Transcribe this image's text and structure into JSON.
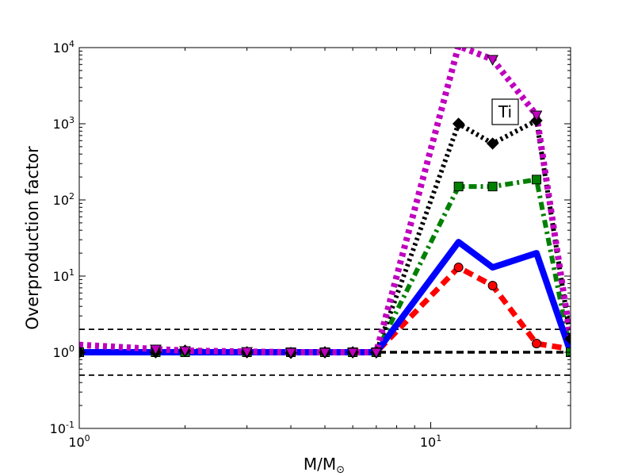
{
  "chart_data": {
    "type": "line",
    "xscale": "log",
    "yscale": "log",
    "xlim": [
      1,
      25
    ],
    "ylim": [
      0.1,
      10000
    ],
    "xlabel": "M/M",
    "xlabel_sub": "⊙",
    "ylabel": "Overproduction factor",
    "annotation": "Ti",
    "x_ticks": [
      {
        "value": 1,
        "base": "10",
        "exp": "0"
      },
      {
        "value": 10,
        "base": "10",
        "exp": "1"
      }
    ],
    "y_ticks": [
      {
        "value": 0.1,
        "base": "10",
        "exp": "-1"
      },
      {
        "value": 1,
        "base": "10",
        "exp": "0"
      },
      {
        "value": 10,
        "base": "10",
        "exp": "1"
      },
      {
        "value": 100,
        "base": "10",
        "exp": "2"
      },
      {
        "value": 1000,
        "base": "10",
        "exp": "3"
      },
      {
        "value": 10000,
        "base": "10",
        "exp": "4"
      }
    ],
    "reference_lines": [
      {
        "y": 2,
        "color": "#000000",
        "style": "dashed"
      },
      {
        "y": 1,
        "color": "#000000",
        "style": "dashed-bold"
      },
      {
        "y": 0.5,
        "color": "#000000",
        "style": "dashed"
      }
    ],
    "series": [
      {
        "color": "#008000",
        "style": "dashdot",
        "marker": "square",
        "x": [
          1,
          1.65,
          2,
          3,
          4,
          5,
          6,
          7,
          12,
          15,
          20,
          25
        ],
        "y": [
          1.0,
          1.0,
          1.0,
          1.0,
          1.0,
          1.0,
          1.0,
          1.0,
          150,
          150,
          185,
          1.0
        ],
        "markers_x": [
          1,
          1.65,
          2,
          3,
          4,
          5,
          6,
          7,
          12,
          15,
          20,
          25
        ],
        "markers_y": [
          1.0,
          1.0,
          1.0,
          1.0,
          1.0,
          1.0,
          1.0,
          1.0,
          150,
          150,
          185,
          1.0
        ]
      },
      {
        "color": "#000000",
        "style": "dotted",
        "marker": "diamond",
        "x": [
          1,
          1.65,
          2,
          3,
          4,
          5,
          6,
          7,
          12,
          15,
          20,
          25
        ],
        "y": [
          1.0,
          1.0,
          1.05,
          1.0,
          0.98,
          1.0,
          1.0,
          1.0,
          1000,
          550,
          1100,
          1.5
        ],
        "markers_x": [
          1,
          1.65,
          2,
          3,
          4,
          5,
          6,
          7,
          12,
          15,
          20,
          25
        ],
        "markers_y": [
          1.0,
          1.0,
          1.05,
          1.0,
          0.98,
          1.0,
          1.0,
          1.0,
          1000,
          550,
          1100,
          1.5
        ]
      },
      {
        "color": "#ff0000",
        "style": "dashed",
        "marker": "circle",
        "x": [
          1,
          1.65,
          2,
          3,
          4,
          5,
          6,
          7,
          12,
          15,
          20,
          25
        ],
        "y": [
          1.0,
          1.0,
          1.0,
          1.0,
          1.0,
          1.0,
          1.0,
          1.0,
          13,
          7.5,
          1.3,
          1.1
        ],
        "markers_x": [
          12,
          15,
          20
        ],
        "markers_y": [
          13,
          7.5,
          1.3
        ]
      },
      {
        "color": "#0000ff",
        "style": "solid",
        "marker": "none",
        "x": [
          1,
          1.65,
          2,
          3,
          4,
          5,
          6,
          7,
          12,
          15,
          20,
          25
        ],
        "y": [
          1.0,
          1.0,
          1.0,
          1.0,
          1.0,
          1.0,
          1.0,
          1.0,
          28,
          13,
          20,
          1.0
        ],
        "markers_x": [],
        "markers_y": []
      },
      {
        "color": "#bf00bf",
        "style": "dotted",
        "marker": "triangle_down",
        "x": [
          1,
          1.65,
          2,
          3,
          4,
          5,
          6,
          7,
          12,
          15,
          20,
          25
        ],
        "y": [
          1.25,
          1.1,
          1.05,
          1.02,
          1.0,
          1.0,
          1.0,
          1.0,
          10500,
          7000,
          1300,
          1.5
        ],
        "markers_x": [
          1.65,
          2,
          3,
          4,
          5,
          6,
          7,
          15,
          20
        ],
        "markers_y": [
          1.1,
          1.05,
          1.02,
          1.0,
          1.0,
          1.0,
          1.0,
          7000,
          1300
        ]
      }
    ]
  }
}
